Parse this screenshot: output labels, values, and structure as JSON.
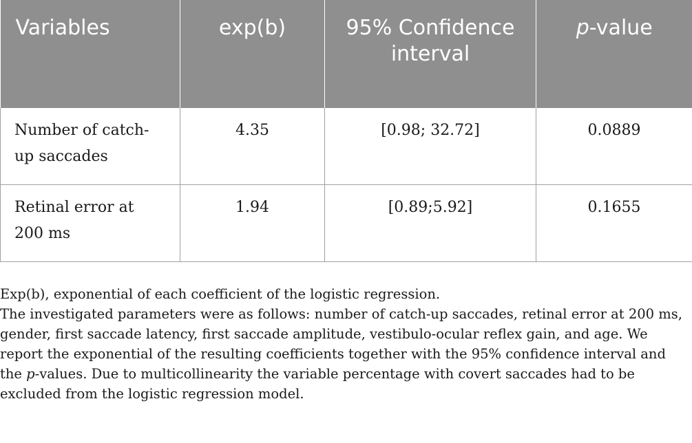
{
  "table": {
    "headers": {
      "variables": "Variables",
      "expb": "exp(b)",
      "ci": "95% Confidence interval",
      "p_italic": "p",
      "p_rest": "-value"
    },
    "rows": [
      {
        "variable": "Number of catch-up saccades",
        "expb": "4.35",
        "ci": "[0.98; 32.72]",
        "p": "0.0889"
      },
      {
        "variable": "Retinal error at 200 ms",
        "expb": "1.94",
        "ci": "[0.89;5.92]",
        "p": "0.1655"
      }
    ]
  },
  "footnotes": {
    "line1": "Exp(b), exponential of each coefficient of the logistic regression.",
    "line2_before": "The investigated parameters were as follows: number of catch-up saccades, retinal error at 200 ms, gender, first saccade latency, first saccade amplitude, vestibulo-ocular reflex gain, and age. We report the exponential of the resulting coefficients together with the 95% confidence interval and the ",
    "line2_italic": "p",
    "line2_after": "-values. Due to multicollinearity the variable percentage with covert saccades had to be excluded from the logistic regression model."
  }
}
